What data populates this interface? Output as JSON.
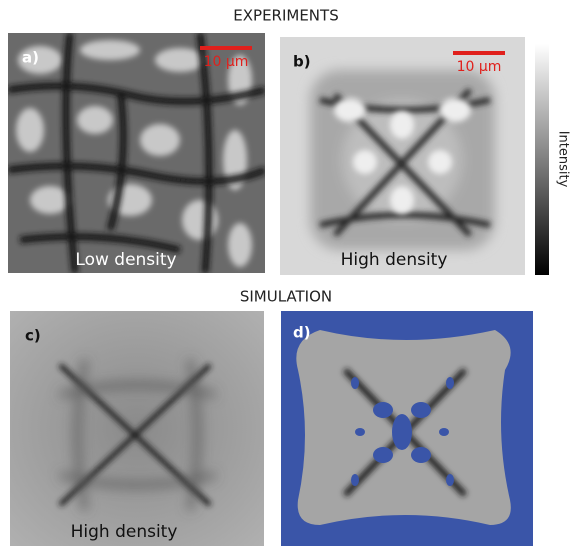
{
  "header": {
    "experiments": "EXPERIMENTS",
    "simulation": "SIMULATION"
  },
  "panels": [
    {
      "label": "a)",
      "scale_bar": "10 μm",
      "caption": "Low density"
    },
    {
      "label": "b)",
      "scale_bar": "10 μm",
      "caption": "High density"
    },
    {
      "label": "c)",
      "caption": "High density"
    },
    {
      "label": "d)"
    }
  ],
  "colorbar": {
    "label": "Intensity"
  }
}
